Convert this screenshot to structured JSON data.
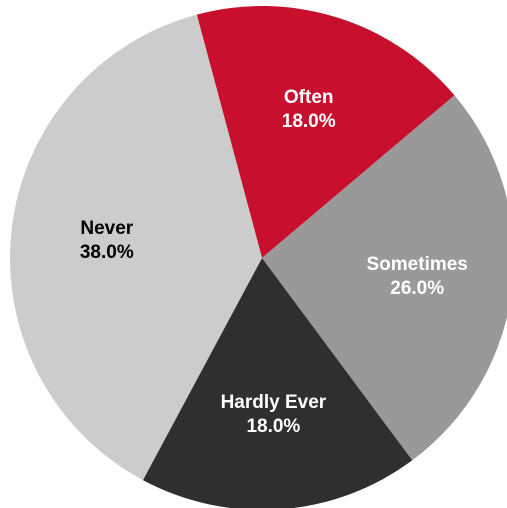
{
  "chart_data": {
    "type": "pie",
    "title": "",
    "start_angle_deg": -15,
    "direction": "clockwise",
    "slices": [
      {
        "label": "Often",
        "value": 18.0,
        "display": "18.0%",
        "color": "#c8102e",
        "label_color": "#ffffff"
      },
      {
        "label": "Sometimes",
        "value": 26.0,
        "display": "26.0%",
        "color": "#999999",
        "label_color": "#ffffff"
      },
      {
        "label": "Hardly Ever",
        "value": 18.0,
        "display": "18.0%",
        "color": "#2f2f2f",
        "label_color": "#ffffff"
      },
      {
        "label": "Never",
        "value": 38.0,
        "display": "38.0%",
        "color": "#cccccc",
        "label_color": "#000000"
      }
    ]
  }
}
